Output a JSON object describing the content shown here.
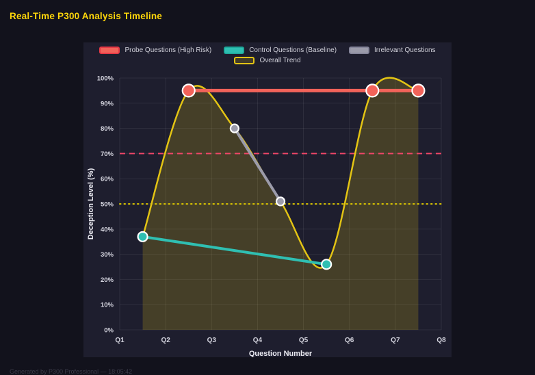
{
  "title": "Real-Time P300 Analysis Timeline",
  "footer": "Generated by P300 Professional — 18:05:42",
  "colors": {
    "page_bg": "#12121c",
    "panel_bg": "#1e1e2e",
    "grid": "rgba(255,255,255,0.08)",
    "title": "#ffd60a",
    "probe": "#f2635a",
    "control": "#2fbfb2",
    "irrelevant": "#9b9baa",
    "trend": "#e3c414",
    "threshold_high": "#f14668",
    "threshold_mid": "#d9c400",
    "trend_fill": "rgba(227,196,20,0.20)",
    "tick_text": "#d6d6e0",
    "axis_title_text": "#ebebf2"
  },
  "legend": {
    "row1": [
      {
        "label": "Probe Questions (High Risk)",
        "fill": "#f2635a",
        "border": "#e63946"
      },
      {
        "label": "Control Questions (Baseline)",
        "fill": "#2fbfb2",
        "border": "#1fa99c"
      },
      {
        "label": "Irrelevant Questions",
        "fill": "#9b9baa",
        "border": "#85859a"
      }
    ],
    "row2": [
      {
        "label": "Overall Trend",
        "fill": "rgba(227,196,20,0.18)",
        "border": "#e3c414"
      }
    ]
  },
  "axes": {
    "x_label": "Question Number",
    "y_label": "Deception Level (%)",
    "x_ticks": [
      "Q1",
      "Q2",
      "Q3",
      "Q4",
      "Q5",
      "Q6",
      "Q7",
      "Q8"
    ],
    "y_ticks": [
      "0%",
      "10%",
      "20%",
      "30%",
      "40%",
      "50%",
      "60%",
      "70%",
      "80%",
      "90%",
      "100%"
    ]
  },
  "chart_data": {
    "type": "line",
    "title": "Real-Time P300 Analysis Timeline",
    "xlabel": "Question Number",
    "ylabel": "Deception Level (%)",
    "xlim": [
      1,
      8
    ],
    "ylim": [
      0,
      100
    ],
    "grid": true,
    "legend_position": "top",
    "series": [
      {
        "name": "Probe Questions (High Risk)",
        "color": "#f2635a",
        "line_width": 5,
        "marker_radius": 9,
        "points": [
          {
            "x": 2.5,
            "y": 95
          },
          {
            "x": 6.5,
            "y": 95
          },
          {
            "x": 7.5,
            "y": 95
          }
        ]
      },
      {
        "name": "Control Questions (Baseline)",
        "color": "#2fbfb2",
        "line_width": 4,
        "marker_radius": 7,
        "points": [
          {
            "x": 1.5,
            "y": 37
          },
          {
            "x": 5.5,
            "y": 26
          }
        ]
      },
      {
        "name": "Irrelevant Questions",
        "color": "#9b9baa",
        "line_width": 4,
        "marker_radius": 6,
        "points": [
          {
            "x": 3.5,
            "y": 80
          },
          {
            "x": 4.5,
            "y": 51
          }
        ]
      },
      {
        "name": "Overall Trend",
        "color": "#e3c414",
        "line_width": 2.5,
        "smooth": true,
        "fill": true,
        "marker_radius": 0,
        "points": [
          {
            "x": 1.5,
            "y": 37
          },
          {
            "x": 2.5,
            "y": 95
          },
          {
            "x": 3.5,
            "y": 80
          },
          {
            "x": 4.5,
            "y": 51
          },
          {
            "x": 5.5,
            "y": 26
          },
          {
            "x": 6.5,
            "y": 95
          },
          {
            "x": 7.5,
            "y": 95
          }
        ]
      }
    ],
    "thresholds": [
      {
        "y": 70,
        "color": "#f14668",
        "style": "dashed"
      },
      {
        "y": 50,
        "color": "#d9c400",
        "style": "dotted"
      }
    ]
  }
}
